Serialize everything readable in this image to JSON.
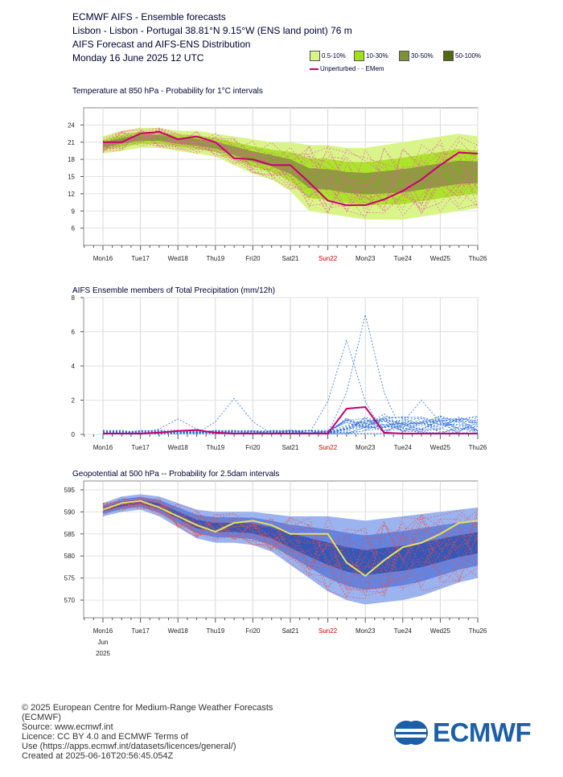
{
  "header": {
    "line1": "ECMWF AIFS - Ensemble forecasts",
    "line2": "Lisbon - Lisbon - Portugal 38.81°N 9.15°W (ENS land point) 76 m",
    "line3": "AIFS Forecast and AIFS-ENS Distribution",
    "line4": "Monday 16 June 2025 12 UTC"
  },
  "legend": {
    "items": [
      {
        "label": "0.5-10%",
        "color": "#d9f58a"
      },
      {
        "label": "10-30%",
        "color": "#a3e01a"
      },
      {
        "label": "30-50%",
        "color": "#7f8f3a"
      },
      {
        "label": "50-100%",
        "color": "#4f6a10"
      }
    ],
    "unperturbed": "Unperturbed",
    "emem": "EMem",
    "unperturbed_color": "#c8006e",
    "emem_color": "#c0c0c0"
  },
  "x_ticks": [
    "Mon16",
    "Tue17",
    "Wed18",
    "Thu19",
    "Fri20",
    "Sat21",
    "Sun22",
    "Mon23",
    "Tue24",
    "Wed25",
    "Thu26"
  ],
  "x_month": "Jun",
  "x_year": "2025",
  "chart_data": [
    {
      "type": "line",
      "title": "Temperature at 850 hPa - Probability for 1°C intervals",
      "ylim": [
        3,
        27
      ],
      "yticks": [
        6,
        9,
        12,
        15,
        18,
        21,
        24
      ],
      "series": [
        {
          "name": "Unperturbed",
          "color": "#c8006e",
          "x": [
            0,
            0.5,
            1,
            1.5,
            2,
            2.5,
            3,
            3.5,
            4,
            4.5,
            5,
            5.5,
            6,
            6.5,
            7,
            7.5,
            8,
            8.5,
            9,
            9.5,
            10
          ],
          "values": [
            21,
            21,
            22.5,
            22.8,
            21.5,
            22,
            21,
            18.2,
            18,
            17,
            17,
            14,
            10.8,
            10,
            10,
            11,
            12.5,
            14.5,
            17,
            19.2,
            19
          ]
        }
      ],
      "band_upper": [
        22,
        23,
        23.5,
        23.5,
        23,
        23,
        22.5,
        22,
        21.5,
        21,
        21,
        20.5,
        20.5,
        20,
        20,
        20.5,
        21,
        21.5,
        22,
        22.5,
        22
      ],
      "band_lower": [
        19,
        19.5,
        20,
        20,
        19.5,
        19,
        18.5,
        17,
        15.5,
        14.5,
        12.5,
        9,
        8.5,
        8,
        7.5,
        7.5,
        7.5,
        8,
        8.5,
        9,
        9.5
      ]
    },
    {
      "type": "line",
      "title": "AIFS Ensemble members of Total Precipitation (mm/12h)",
      "ylim": [
        0,
        8
      ],
      "yticks": [
        0,
        2,
        4,
        6,
        8
      ],
      "series": [
        {
          "name": "Unperturbed",
          "color": "#c8006e",
          "x": [
            0,
            0.5,
            1,
            1.5,
            2,
            2.5,
            3,
            3.5,
            4,
            4.5,
            5,
            5.5,
            6,
            6.5,
            7,
            7.5,
            8,
            8.5,
            9,
            9.5,
            10
          ],
          "values": [
            0.05,
            0.05,
            0.05,
            0.1,
            0.2,
            0.25,
            0.1,
            0.05,
            0.05,
            0.05,
            0.05,
            0.05,
            0.05,
            1.5,
            1.6,
            0.1,
            0.05,
            0.05,
            0.05,
            0.05,
            0.05
          ]
        }
      ],
      "members_peaks": [
        {
          "x": 6.5,
          "y": 5.5
        },
        {
          "x": 7,
          "y": 7
        },
        {
          "x": 3.5,
          "y": 2.1
        },
        {
          "x": 8.5,
          "y": 2
        },
        {
          "x": 2,
          "y": 0.9
        },
        {
          "x": 7.5,
          "y": 1.2
        }
      ]
    },
    {
      "type": "line",
      "title": "Geopotential at 500 hPa -- Probability for 2.5dam intervals",
      "ylim": [
        566,
        597
      ],
      "yticks": [
        570,
        575,
        580,
        585,
        590,
        595
      ],
      "series": [
        {
          "name": "Unperturbed",
          "color": "#e6e060",
          "x": [
            0,
            0.5,
            1,
            1.5,
            2,
            2.5,
            3,
            3.5,
            4,
            4.5,
            5,
            5.5,
            6,
            6.5,
            7,
            7.5,
            8,
            8.5,
            9,
            9.5,
            10
          ],
          "values": [
            590.5,
            592,
            592.5,
            591,
            589,
            587,
            585.5,
            587.5,
            588,
            587,
            585,
            585,
            585,
            578.5,
            575.5,
            579,
            582,
            583,
            585,
            587.5,
            588
          ]
        }
      ],
      "band_upper": [
        592,
        593.5,
        594,
        593.5,
        592,
        590.5,
        590,
        590,
        590,
        589.5,
        589,
        589,
        589,
        588.5,
        588,
        588.5,
        589,
        589.5,
        590,
        590.5,
        591
      ],
      "band_lower": [
        589,
        590,
        590.5,
        589,
        586.5,
        584,
        583,
        583,
        582.5,
        581,
        578,
        575,
        572,
        570,
        569,
        569.5,
        570,
        571,
        572.5,
        574,
        575
      ]
    }
  ],
  "footer": {
    "copyright": "© 2025 European Centre for Medium-Range Weather Forecasts",
    "org_abbr": "(ECMWF)",
    "source": "Source: www.ecmwf.int",
    "licence1": "Licence: CC BY 4.0 and ECMWF Terms of",
    "licence2": "Use (https://apps.ecmwf.int/datasets/licences/general/)",
    "created": "Created at 2025-06-16T20:56:45.054Z"
  },
  "logo_text": "ECMWF"
}
